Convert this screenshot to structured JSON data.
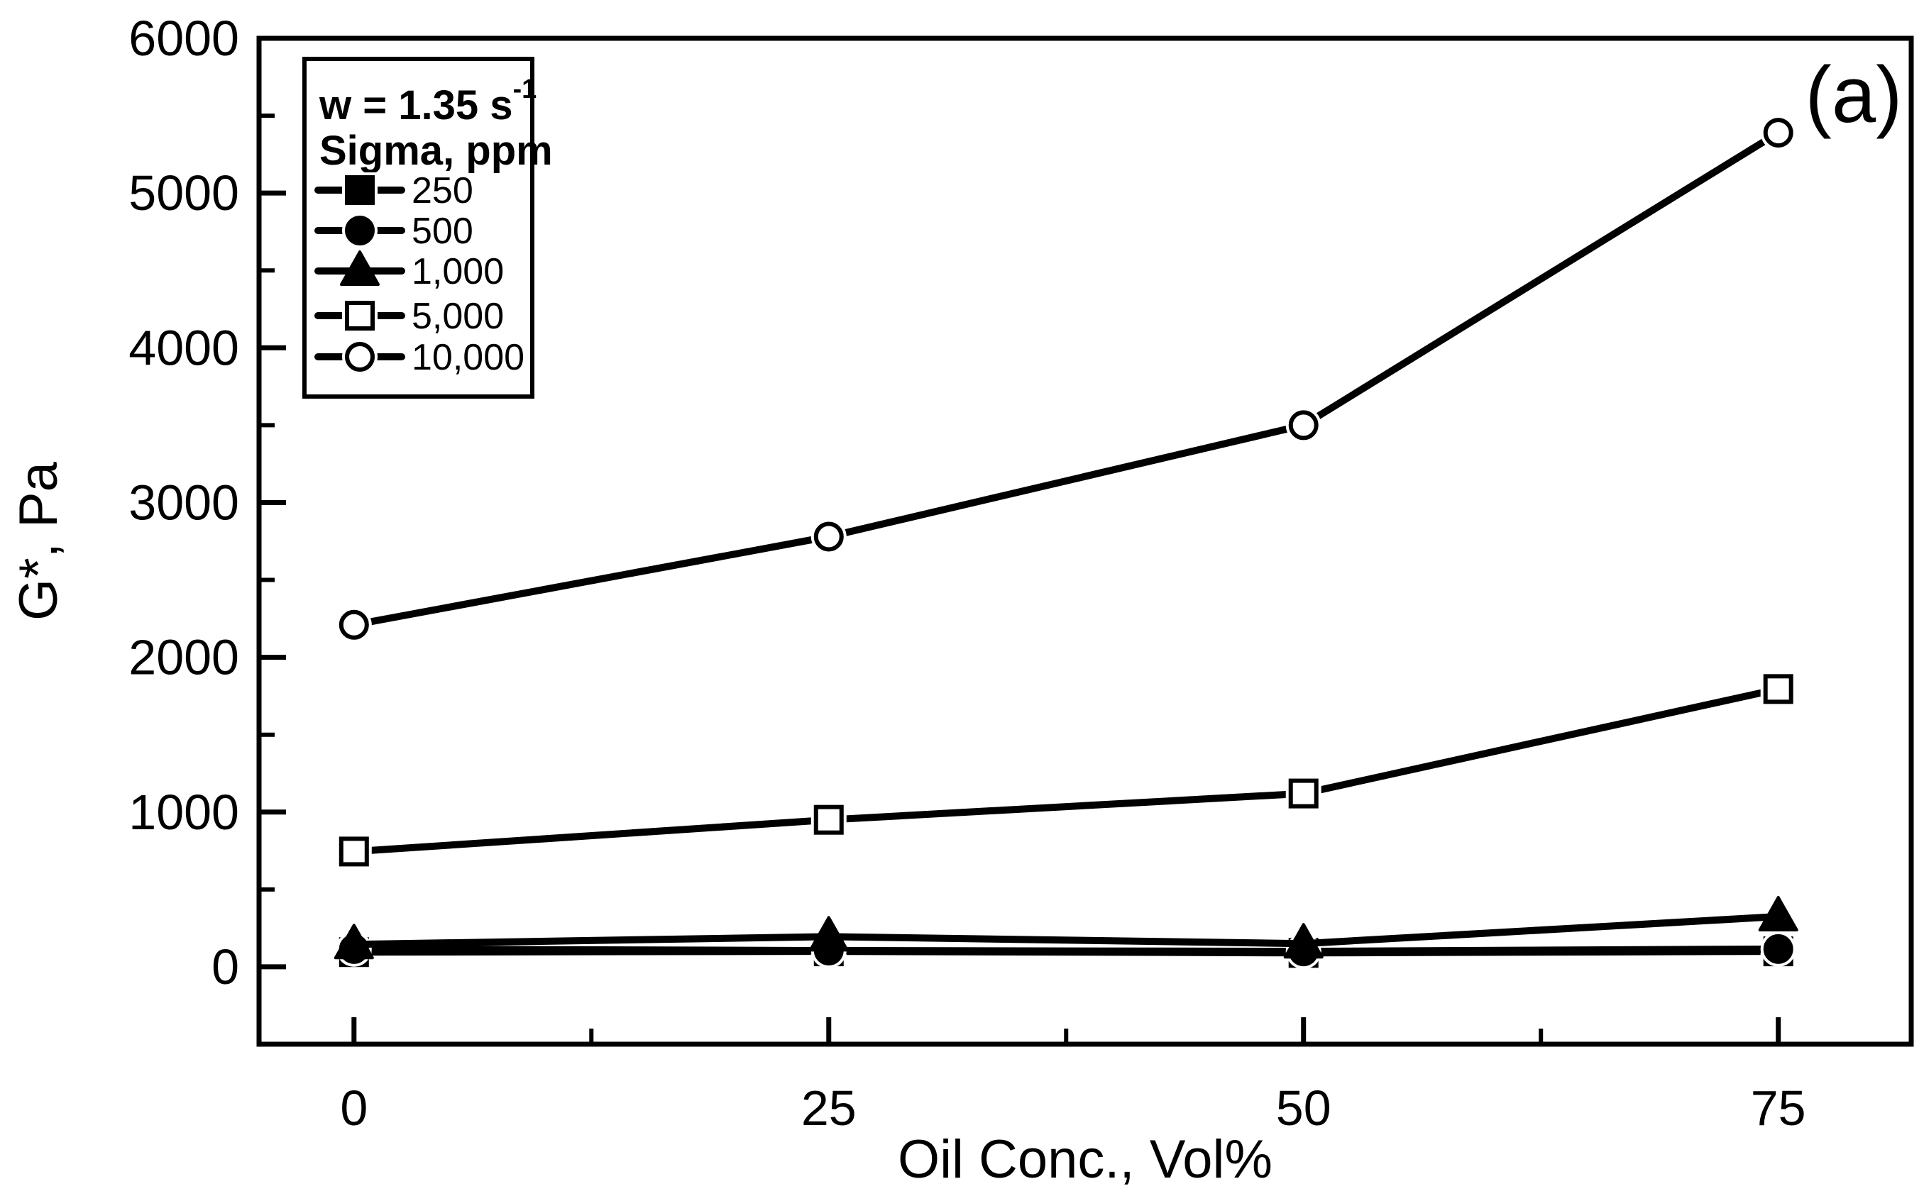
{
  "figure": {
    "background": "#ffffff",
    "foreground": "#000000",
    "panel_label": "(a)"
  },
  "chart_data": {
    "type": "line",
    "title": "",
    "xlabel": "Oil Conc., Vol%",
    "ylabel": "G*, Pa",
    "xlim": [
      -5,
      82
    ],
    "ylim": [
      -500,
      6000
    ],
    "x": [
      0,
      25,
      50,
      75
    ],
    "x_major_ticks": [
      0,
      25,
      50,
      75
    ],
    "x_minor_ticks": [
      12.5,
      37.5,
      62.5
    ],
    "y_major_ticks": [
      0,
      1000,
      2000,
      3000,
      4000,
      5000,
      6000
    ],
    "y_minor_ticks": [
      500,
      1500,
      2500,
      3500,
      4500,
      5500
    ],
    "grid": false,
    "line_color": "#000000",
    "legend": {
      "position": "top-left",
      "omega": {
        "base": "w = 1.35 s",
        "superscript": "-1"
      },
      "subtitle": "Sigma, ppm",
      "entries": [
        "250",
        "500",
        "1,000",
        "5,000",
        "10,000"
      ]
    },
    "series": [
      {
        "name": "250",
        "marker": "square-filled",
        "values": [
          95,
          100,
          90,
          100
        ]
      },
      {
        "name": "500",
        "marker": "circle-filled",
        "values": [
          115,
          105,
          100,
          115
        ]
      },
      {
        "name": "1,000",
        "marker": "triangle-filled",
        "values": [
          145,
          195,
          150,
          325
        ]
      },
      {
        "name": "5,000",
        "marker": "square-open",
        "values": [
          745,
          950,
          1120,
          1795
        ]
      },
      {
        "name": "10,000",
        "marker": "circle-open",
        "values": [
          2210,
          2780,
          3500,
          5390
        ]
      }
    ]
  }
}
